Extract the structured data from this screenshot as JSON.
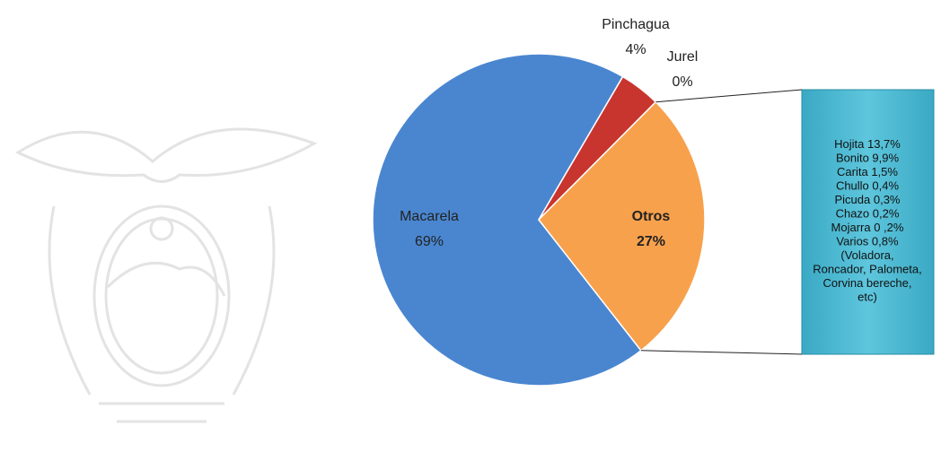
{
  "chart_data": {
    "type": "pie",
    "categories": [
      "Macarela",
      "Pinchagua",
      "Jurel",
      "Otros"
    ],
    "values": [
      69,
      4,
      0,
      27
    ],
    "value_labels": [
      "69%",
      "4%",
      "0%",
      "27%"
    ],
    "colors": [
      "#4a86d0",
      "#c8352e",
      "#8e6fb0",
      "#f8a14c"
    ],
    "annotations": [
      "Hojita  13,7%",
      "Bonito  9,9%",
      "Carita  1,5%",
      "Chullo  0,4%",
      "Picuda  0,3%",
      "Chazo  0,2%",
      "Mojarra 0 ,2%",
      "Varios   0,8%",
      "(Voladora,",
      "Roncador, Palometa,",
      "Corvina bereche,",
      "etc)"
    ]
  }
}
